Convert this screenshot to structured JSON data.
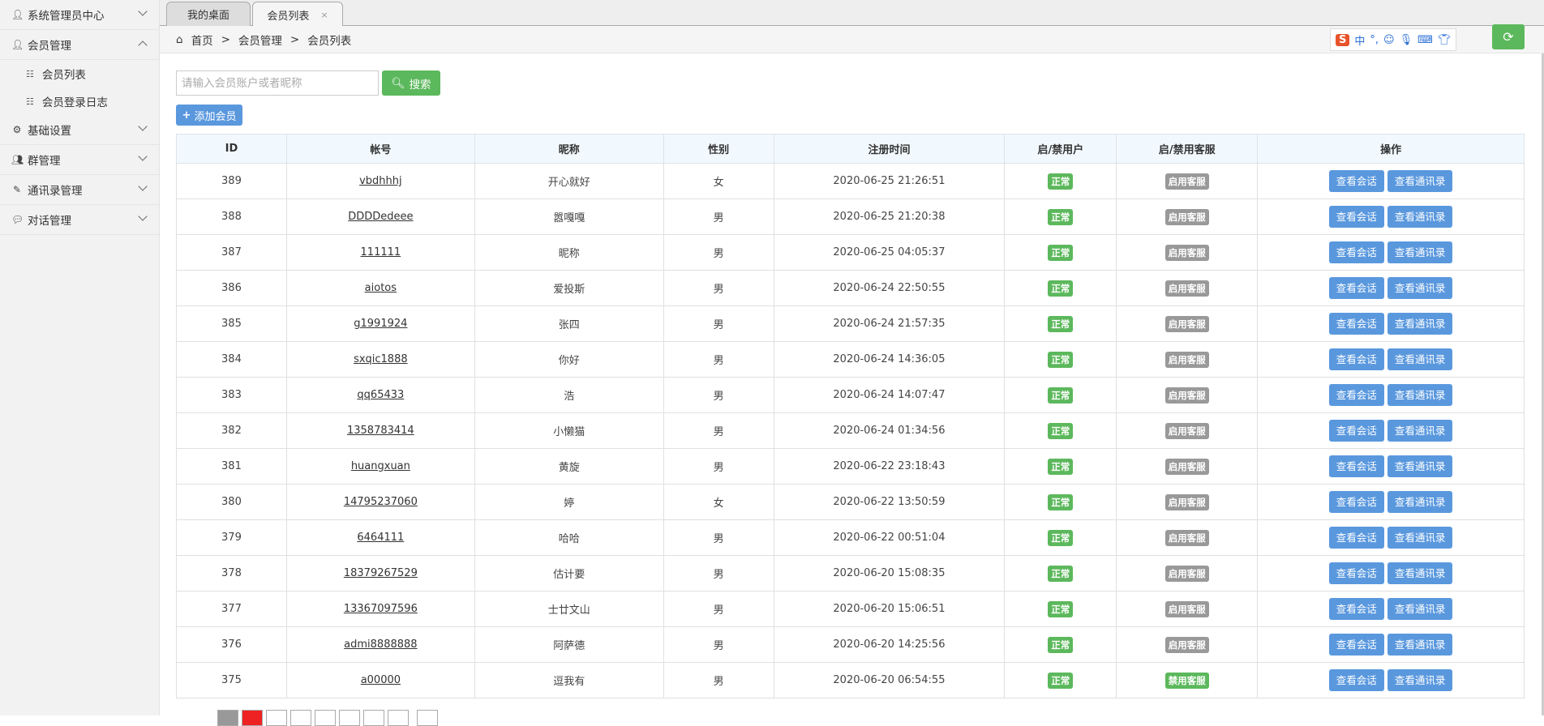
{
  "sidebar": {
    "items": [
      {
        "label": "系统管理员中心",
        "icon": "user-icon",
        "expanded": false
      },
      {
        "label": "会员管理",
        "icon": "user-icon",
        "expanded": true,
        "children": [
          {
            "label": "会员列表",
            "icon": "list-icon"
          },
          {
            "label": "会员登录日志",
            "icon": "list-icon"
          }
        ]
      },
      {
        "label": "基础设置",
        "icon": "gear-icon",
        "expanded": false
      },
      {
        "label": "群管理",
        "icon": "users-icon",
        "expanded": false
      },
      {
        "label": "通讯录管理",
        "icon": "edit-icon",
        "expanded": false
      },
      {
        "label": "对话管理",
        "icon": "chat-icon",
        "expanded": false
      }
    ]
  },
  "tabs": [
    {
      "label": "我的桌面"
    },
    {
      "label": "会员列表",
      "close": "×",
      "active": true
    }
  ],
  "breadcrumb": {
    "home": "首页",
    "sep": ">",
    "level2": "会员管理",
    "level3": "会员列表"
  },
  "search": {
    "placeholder": "请输入会员账户或者昵称",
    "value": "",
    "button": "搜索"
  },
  "add_button": "添加会员",
  "table": {
    "headers": [
      "ID",
      "帐号",
      "昵称",
      "性别",
      "注册时间",
      "启/禁用户",
      "启/禁用客服",
      "操作"
    ],
    "rows": [
      {
        "id": "389",
        "account": "vbdhhhj",
        "nick": "开心就好",
        "gender": "女",
        "time": "2020-06-25 21:26:51",
        "user_status": "正常",
        "service": "启用客服",
        "service_active": false
      },
      {
        "id": "388",
        "account": "DDDDedeee",
        "nick": "嚣嘎嘎",
        "gender": "男",
        "time": "2020-06-25 21:20:38",
        "user_status": "正常",
        "service": "启用客服",
        "service_active": false
      },
      {
        "id": "387",
        "account": "111111",
        "nick": "昵称",
        "gender": "男",
        "time": "2020-06-25 04:05:37",
        "user_status": "正常",
        "service": "启用客服",
        "service_active": false
      },
      {
        "id": "386",
        "account": "aiotos",
        "nick": "爱投斯",
        "gender": "男",
        "time": "2020-06-24 22:50:55",
        "user_status": "正常",
        "service": "启用客服",
        "service_active": false
      },
      {
        "id": "385",
        "account": "g1991924",
        "nick": "张四",
        "gender": "男",
        "time": "2020-06-24 21:57:35",
        "user_status": "正常",
        "service": "启用客服",
        "service_active": false
      },
      {
        "id": "384",
        "account": "sxqic1888",
        "nick": "你好",
        "gender": "男",
        "time": "2020-06-24 14:36:05",
        "user_status": "正常",
        "service": "启用客服",
        "service_active": false
      },
      {
        "id": "383",
        "account": "qq65433",
        "nick": "浩",
        "gender": "男",
        "time": "2020-06-24 14:07:47",
        "user_status": "正常",
        "service": "启用客服",
        "service_active": false
      },
      {
        "id": "382",
        "account": "1358783414",
        "nick": "小懒猫",
        "gender": "男",
        "time": "2020-06-24 01:34:56",
        "user_status": "正常",
        "service": "启用客服",
        "service_active": false
      },
      {
        "id": "381",
        "account": "huangxuan",
        "nick": "黄旋",
        "gender": "男",
        "time": "2020-06-22 23:18:43",
        "user_status": "正常",
        "service": "启用客服",
        "service_active": false
      },
      {
        "id": "380",
        "account": "14795237060",
        "nick": "婷",
        "gender": "女",
        "time": "2020-06-22 13:50:59",
        "user_status": "正常",
        "service": "启用客服",
        "service_active": false
      },
      {
        "id": "379",
        "account": "6464111",
        "nick": "哈哈",
        "gender": "男",
        "time": "2020-06-22 00:51:04",
        "user_status": "正常",
        "service": "启用客服",
        "service_active": false
      },
      {
        "id": "378",
        "account": "18379267529",
        "nick": "估计要",
        "gender": "男",
        "time": "2020-06-20 15:08:35",
        "user_status": "正常",
        "service": "启用客服",
        "service_active": false
      },
      {
        "id": "377",
        "account": "13367097596",
        "nick": "士廿文山",
        "gender": "男",
        "time": "2020-06-20 15:06:51",
        "user_status": "正常",
        "service": "启用客服",
        "service_active": false
      },
      {
        "id": "376",
        "account": "admi8888888",
        "nick": "阿萨德",
        "gender": "男",
        "time": "2020-06-20 14:25:56",
        "user_status": "正常",
        "service": "启用客服",
        "service_active": false
      },
      {
        "id": "375",
        "account": "a00000",
        "nick": "逗我有",
        "gender": "男",
        "time": "2020-06-20 06:54:55",
        "user_status": "正常",
        "service": "禁用客服",
        "service_active": true
      }
    ],
    "actions": [
      "查看会话",
      "查看通讯录"
    ]
  },
  "ime": {
    "logo": "S",
    "mode": "中",
    "punct": "°,"
  },
  "colors": {
    "green": "#5cb85c",
    "blue": "#5a98de",
    "gray": "#999999",
    "header_bg": "#f2f9fe"
  }
}
